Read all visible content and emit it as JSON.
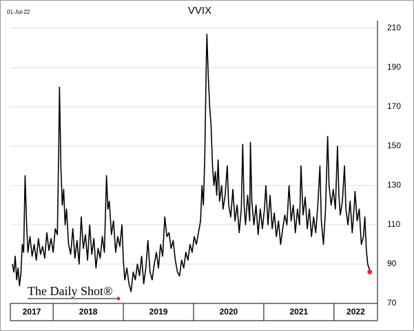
{
  "chart_data": {
    "type": "line",
    "title": "VVIX",
    "date_label": "01-Jul-22",
    "source": "The Daily Shot®",
    "color": "#000000",
    "marker_color": "#e8262c",
    "grid": true,
    "x": [
      2017.42,
      2017.44,
      2017.46,
      2017.48,
      2017.5,
      2017.52,
      2017.54,
      2017.56,
      2017.58,
      2017.6,
      2017.62,
      2017.64,
      2017.67,
      2017.7,
      2017.73,
      2017.76,
      2017.79,
      2017.82,
      2017.85,
      2017.88,
      2017.91,
      2017.94,
      2017.97,
      2018.0,
      2018.03,
      2018.06,
      2018.08,
      2018.09,
      2018.11,
      2018.13,
      2018.15,
      2018.17,
      2018.19,
      2018.22,
      2018.25,
      2018.28,
      2018.31,
      2018.34,
      2018.37,
      2018.4,
      2018.43,
      2018.46,
      2018.49,
      2018.52,
      2018.55,
      2018.58,
      2018.61,
      2018.64,
      2018.67,
      2018.7,
      2018.73,
      2018.76,
      2018.78,
      2018.8,
      2018.83,
      2018.86,
      2018.89,
      2018.92,
      2018.95,
      2018.98,
      2019.0,
      2019.02,
      2019.05,
      2019.08,
      2019.11,
      2019.14,
      2019.17,
      2019.2,
      2019.23,
      2019.26,
      2019.29,
      2019.32,
      2019.35,
      2019.38,
      2019.41,
      2019.44,
      2019.47,
      2019.5,
      2019.53,
      2019.56,
      2019.59,
      2019.62,
      2019.65,
      2019.68,
      2019.71,
      2019.74,
      2019.77,
      2019.8,
      2019.83,
      2019.86,
      2019.89,
      2019.92,
      2019.95,
      2019.98,
      2020.01,
      2020.04,
      2020.07,
      2020.1,
      2020.12,
      2020.14,
      2020.16,
      2020.18,
      2020.19,
      2020.21,
      2020.23,
      2020.25,
      2020.27,
      2020.29,
      2020.31,
      2020.33,
      2020.35,
      2020.37,
      2020.4,
      2020.42,
      2020.45,
      2020.48,
      2020.5,
      2020.53,
      2020.56,
      2020.59,
      2020.62,
      2020.65,
      2020.68,
      2020.7,
      2020.72,
      2020.74,
      2020.77,
      2020.8,
      2020.81,
      2020.83,
      2020.86,
      2020.89,
      2020.92,
      2020.95,
      2020.98,
      2021.01,
      2021.03,
      2021.06,
      2021.09,
      2021.12,
      2021.15,
      2021.18,
      2021.21,
      2021.24,
      2021.27,
      2021.3,
      2021.33,
      2021.36,
      2021.39,
      2021.42,
      2021.45,
      2021.48,
      2021.51,
      2021.53,
      2021.56,
      2021.59,
      2021.62,
      2021.65,
      2021.68,
      2021.71,
      2021.74,
      2021.77,
      2021.8,
      2021.82,
      2021.85,
      2021.88,
      2021.91,
      2021.93,
      2021.96,
      2021.99,
      2022.02,
      2022.05,
      2022.07,
      2022.09,
      2022.12,
      2022.15,
      2022.17,
      2022.2,
      2022.23,
      2022.26,
      2022.29,
      2022.3,
      2022.33,
      2022.36,
      2022.39,
      2022.42,
      2022.44,
      2022.46,
      2022.48,
      2022.5,
      2022.51
    ],
    "values": [
      90,
      86,
      94,
      82,
      88,
      79,
      85,
      100,
      96,
      135,
      112,
      96,
      104,
      94,
      100,
      92,
      103,
      95,
      99,
      93,
      106,
      97,
      103,
      96,
      108,
      105,
      150,
      180,
      140,
      120,
      128,
      110,
      118,
      100,
      95,
      108,
      93,
      102,
      90,
      114,
      98,
      105,
      92,
      110,
      95,
      103,
      88,
      98,
      93,
      104,
      96,
      135,
      118,
      122,
      105,
      112,
      96,
      104,
      99,
      110,
      92,
      82,
      88,
      80,
      76,
      86,
      82,
      90,
      84,
      94,
      80,
      88,
      102,
      86,
      82,
      90,
      96,
      88,
      100,
      94,
      114,
      104,
      106,
      98,
      102,
      92,
      86,
      84,
      92,
      88,
      96,
      92,
      100,
      96,
      104,
      100,
      106,
      112,
      130,
      120,
      145,
      190,
      207,
      185,
      170,
      160,
      140,
      130,
      137,
      125,
      143,
      122,
      130,
      118,
      125,
      140,
      120,
      114,
      128,
      112,
      120,
      106,
      118,
      151,
      120,
      110,
      125,
      112,
      152,
      122,
      110,
      120,
      105,
      118,
      108,
      118,
      130,
      110,
      125,
      108,
      116,
      104,
      112,
      100,
      108,
      115,
      110,
      130,
      112,
      120,
      106,
      118,
      110,
      140,
      115,
      124,
      108,
      118,
      104,
      114,
      106,
      120,
      140,
      112,
      100,
      118,
      155,
      130,
      120,
      128,
      118,
      150,
      125,
      115,
      122,
      140,
      118,
      110,
      122,
      106,
      120,
      127,
      112,
      118,
      100,
      104,
      114,
      98,
      90,
      88,
      86
    ],
    "xlim": [
      2017.39,
      2022.62
    ],
    "xticks": [
      2018,
      2019,
      2020,
      2021,
      2022
    ],
    "year_labels": [
      "2017",
      "2018",
      "2019",
      "2020",
      "2021",
      "2022"
    ],
    "ylim": [
      70,
      210
    ],
    "yticks": [
      70,
      90,
      110,
      130,
      150,
      170,
      190,
      210
    ]
  }
}
